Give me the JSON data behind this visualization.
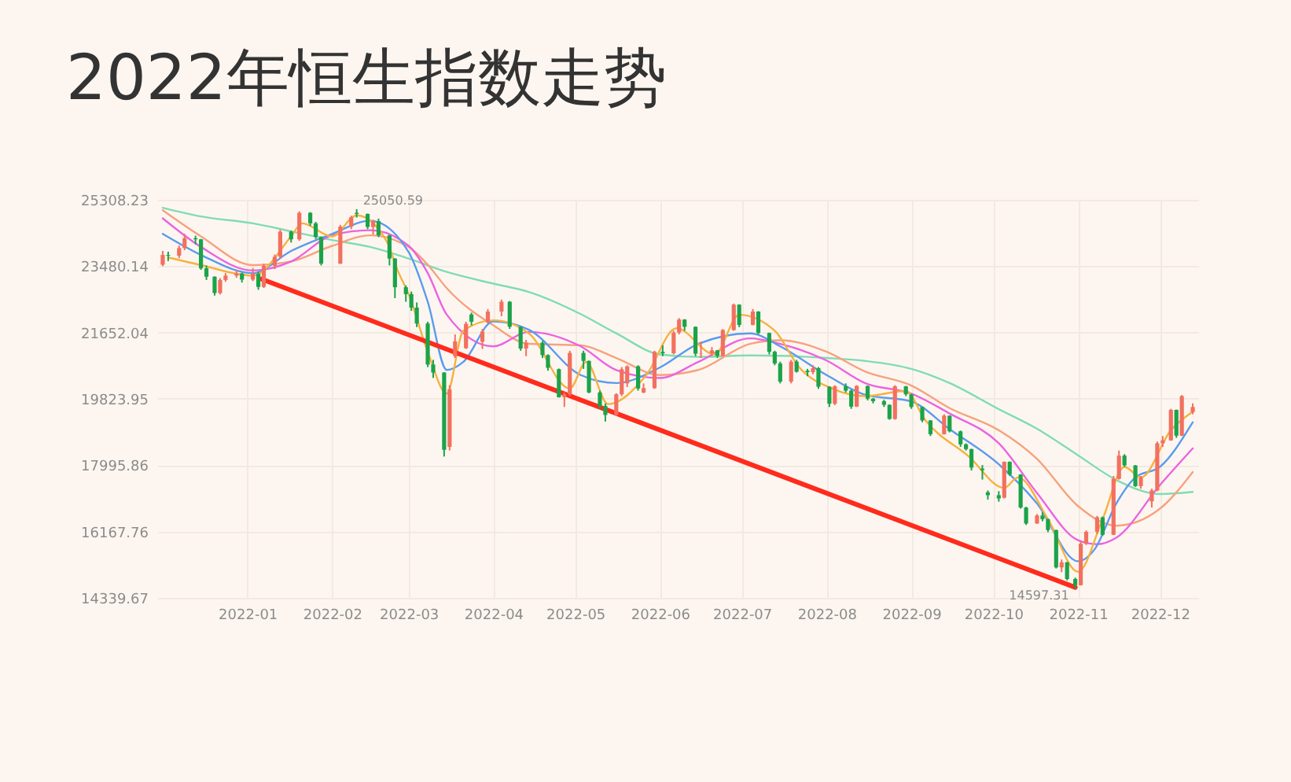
{
  "chart_data": {
    "type": "candlestick",
    "title": "2022年恒生指数走势",
    "x": [
      "2021-12-01",
      "2021-12-03",
      "2021-12-07",
      "2021-12-09",
      "2021-12-13",
      "2021-12-15",
      "2021-12-17",
      "2021-12-20",
      "2021-12-22",
      "2021-12-24",
      "2021-12-28",
      "2021-12-30",
      "2022-01-03",
      "2022-01-05",
      "2022-01-07",
      "2022-01-11",
      "2022-01-13",
      "2022-01-17",
      "2022-01-20",
      "2022-01-24",
      "2022-01-26",
      "2022-01-28",
      "2022-02-04",
      "2022-02-08",
      "2022-02-10",
      "2022-02-14",
      "2022-02-16",
      "2022-02-18",
      "2022-02-22",
      "2022-02-24",
      "2022-02-28",
      "2022-03-02",
      "2022-03-04",
      "2022-03-08",
      "2022-03-10",
      "2022-03-14",
      "2022-03-16",
      "2022-03-18",
      "2022-03-22",
      "2022-03-24",
      "2022-03-28",
      "2022-03-30",
      "2022-04-04",
      "2022-04-07",
      "2022-04-11",
      "2022-04-13",
      "2022-04-19",
      "2022-04-21",
      "2022-04-25",
      "2022-04-27",
      "2022-04-29",
      "2022-05-04",
      "2022-05-06",
      "2022-05-10",
      "2022-05-12",
      "2022-05-16",
      "2022-05-18",
      "2022-05-20",
      "2022-05-24",
      "2022-05-26",
      "2022-05-30",
      "2022-06-02",
      "2022-06-06",
      "2022-06-08",
      "2022-06-10",
      "2022-06-14",
      "2022-06-16",
      "2022-06-20",
      "2022-06-22",
      "2022-06-24",
      "2022-06-28",
      "2022-06-30",
      "2022-07-05",
      "2022-07-07",
      "2022-07-11",
      "2022-07-13",
      "2022-07-15",
      "2022-07-19",
      "2022-07-21",
      "2022-07-25",
      "2022-07-27",
      "2022-07-29",
      "2022-08-02",
      "2022-08-04",
      "2022-08-08",
      "2022-08-10",
      "2022-08-12",
      "2022-08-16",
      "2022-08-18",
      "2022-08-22",
      "2022-08-24",
      "2022-08-26",
      "2022-08-30",
      "2022-09-01",
      "2022-09-05",
      "2022-09-08",
      "2022-09-13",
      "2022-09-15",
      "2022-09-19",
      "2022-09-21",
      "2022-09-23",
      "2022-09-27",
      "2022-09-29",
      "2022-10-03",
      "2022-10-05",
      "2022-10-07",
      "2022-10-11",
      "2022-10-13",
      "2022-10-17",
      "2022-10-19",
      "2022-10-21",
      "2022-10-24",
      "2022-10-26",
      "2022-10-28",
      "2022-10-31",
      "2022-11-02",
      "2022-11-04",
      "2022-11-08",
      "2022-11-10",
      "2022-11-14",
      "2022-11-16",
      "2022-11-18",
      "2022-11-22",
      "2022-11-24",
      "2022-11-28",
      "2022-11-30",
      "2022-12-02",
      "2022-12-05",
      "2022-12-07",
      "2022-12-09",
      "2022-12-13"
    ],
    "ohlc": [
      [
        23520,
        23900,
        23480,
        23790
      ],
      [
        23790,
        23880,
        23620,
        23770
      ],
      [
        23770,
        24050,
        23700,
        23980
      ],
      [
        23980,
        24370,
        23920,
        24250
      ],
      [
        24250,
        24320,
        24080,
        24220
      ],
      [
        24220,
        24230,
        23380,
        23420
      ],
      [
        23420,
        23500,
        23100,
        23190
      ],
      [
        23190,
        23200,
        22670,
        22740
      ],
      [
        22740,
        23150,
        22700,
        23100
      ],
      [
        23100,
        23290,
        23050,
        23220
      ],
      [
        23220,
        23380,
        23160,
        23280
      ],
      [
        23280,
        23300,
        23030,
        23110
      ],
      [
        23110,
        23430,
        23070,
        23270
      ],
      [
        23270,
        23330,
        22830,
        22910
      ],
      [
        22910,
        23550,
        22880,
        23490
      ],
      [
        23490,
        23800,
        23400,
        23740
      ],
      [
        23740,
        24480,
        23700,
        24430
      ],
      [
        24430,
        24460,
        24130,
        24220
      ],
      [
        24220,
        24990,
        24180,
        24950
      ],
      [
        24950,
        24970,
        24590,
        24660
      ],
      [
        24660,
        24700,
        24230,
        24290
      ],
      [
        24290,
        24300,
        23500,
        23550
      ],
      [
        23550,
        24620,
        23540,
        24570
      ],
      [
        24570,
        24870,
        24500,
        24830
      ],
      [
        24950,
        25050.59,
        24820,
        24920
      ],
      [
        24920,
        24930,
        24500,
        24560
      ],
      [
        24560,
        24760,
        24350,
        24720
      ],
      [
        24720,
        24790,
        24280,
        24330
      ],
      [
        24330,
        24340,
        23500,
        23690
      ],
      [
        23690,
        23700,
        22600,
        22900
      ],
      [
        22900,
        22950,
        22500,
        22710
      ],
      [
        22710,
        22780,
        22250,
        22340
      ],
      [
        22340,
        22480,
        21800,
        21900
      ],
      [
        21900,
        21950,
        20700,
        20770
      ],
      [
        20770,
        20900,
        20400,
        20550
      ],
      [
        20550,
        20560,
        18235,
        18420
      ],
      [
        18500,
        20200,
        18400,
        20090
      ],
      [
        21000,
        21600,
        20950,
        21410
      ],
      [
        21220,
        21950,
        21200,
        21890
      ],
      [
        22150,
        22200,
        21850,
        21950
      ],
      [
        21400,
        21750,
        21200,
        21680
      ],
      [
        21930,
        22300,
        21900,
        22230
      ],
      [
        22230,
        22560,
        22100,
        22500
      ],
      [
        22500,
        22520,
        21750,
        21810
      ],
      [
        21810,
        21820,
        21150,
        21210
      ],
      [
        21210,
        21450,
        21000,
        21370
      ],
      [
        21370,
        21420,
        20950,
        21030
      ],
      [
        21030,
        21050,
        20600,
        20680
      ],
      [
        20640,
        20660,
        19860,
        19870
      ],
      [
        19870,
        20000,
        19600,
        19950
      ],
      [
        19950,
        21150,
        19900,
        21090
      ],
      [
        21090,
        21150,
        20650,
        20870
      ],
      [
        20870,
        20880,
        19980,
        20000
      ],
      [
        20000,
        20050,
        19550,
        19630
      ],
      [
        19630,
        19700,
        19200,
        19380
      ],
      [
        19380,
        19980,
        19350,
        19950
      ],
      [
        19950,
        20700,
        19900,
        20640
      ],
      [
        20250,
        20750,
        20150,
        20720
      ],
      [
        20720,
        20750,
        20050,
        20110
      ],
      [
        20000,
        20250,
        19980,
        20120
      ],
      [
        20120,
        21150,
        20100,
        21120
      ],
      [
        21120,
        21300,
        21000,
        21080
      ],
      [
        21080,
        21700,
        21050,
        21650
      ],
      [
        21650,
        22050,
        21600,
        22010
      ],
      [
        22010,
        22020,
        21700,
        21810
      ],
      [
        21810,
        21820,
        21000,
        21070
      ],
      [
        21070,
        21400,
        20950,
        21080
      ],
      [
        21080,
        21250,
        21000,
        21160
      ],
      [
        21160,
        21170,
        20950,
        21010
      ],
      [
        21010,
        21750,
        21000,
        21720
      ],
      [
        21720,
        22450,
        21700,
        22420
      ],
      [
        22420,
        22430,
        21800,
        21860
      ],
      [
        21860,
        22300,
        21850,
        22230
      ],
      [
        22230,
        22240,
        21600,
        21640
      ],
      [
        21640,
        21650,
        21050,
        21120
      ],
      [
        21120,
        21150,
        20750,
        20800
      ],
      [
        20800,
        20850,
        20250,
        20300
      ],
      [
        20300,
        20900,
        20250,
        20850
      ],
      [
        20850,
        20900,
        20550,
        20570
      ],
      [
        20600,
        20650,
        20450,
        20560
      ],
      [
        20560,
        20750,
        20500,
        20670
      ],
      [
        20670,
        20700,
        20100,
        20160
      ],
      [
        20160,
        20170,
        19600,
        19690
      ],
      [
        19690,
        20200,
        19650,
        20170
      ],
      [
        20170,
        20250,
        20000,
        20050
      ],
      [
        20050,
        20080,
        19550,
        19610
      ],
      [
        19610,
        20200,
        19600,
        20180
      ],
      [
        20180,
        20190,
        19780,
        19830
      ],
      [
        19830,
        19850,
        19700,
        19760
      ],
      [
        19760,
        19800,
        19600,
        19660
      ],
      [
        19660,
        19670,
        19250,
        19270
      ],
      [
        19270,
        20200,
        19250,
        20170
      ],
      [
        20170,
        20180,
        19900,
        19950
      ],
      [
        19950,
        19960,
        19550,
        19600
      ],
      [
        19600,
        19610,
        19180,
        19230
      ],
      [
        19230,
        19240,
        18800,
        18850
      ],
      [
        18850,
        19400,
        18840,
        19360
      ],
      [
        19360,
        19370,
        18900,
        18930
      ],
      [
        18930,
        18950,
        18500,
        18570
      ],
      [
        18570,
        18600,
        18400,
        18440
      ],
      [
        18440,
        18450,
        17850,
        17930
      ],
      [
        17900,
        18000,
        17600,
        17860
      ],
      [
        17250,
        17300,
        17050,
        17170
      ],
      [
        17170,
        17280,
        16990,
        17080
      ],
      [
        17100,
        18100,
        17080,
        18090
      ],
      [
        18090,
        18100,
        17700,
        17740
      ],
      [
        17740,
        17750,
        16800,
        16830
      ],
      [
        16830,
        16850,
        16350,
        16390
      ],
      [
        16390,
        16650,
        16380,
        16610
      ],
      [
        16610,
        16700,
        16450,
        16510
      ],
      [
        16510,
        16520,
        16150,
        16210
      ],
      [
        16210,
        16220,
        15150,
        15180
      ],
      [
        15180,
        15400,
        15050,
        15320
      ],
      [
        15320,
        15330,
        14820,
        14860
      ],
      [
        14860,
        14900,
        14597.31,
        14690
      ],
      [
        14690,
        15900,
        14680,
        15830
      ],
      [
        15830,
        16200,
        15800,
        16160
      ],
      [
        16160,
        16600,
        16100,
        16560
      ],
      [
        16560,
        16580,
        16050,
        16080
      ],
      [
        16080,
        17700,
        16070,
        17620
      ],
      [
        17620,
        18400,
        17600,
        18260
      ],
      [
        18260,
        18300,
        17950,
        17990
      ],
      [
        17990,
        18000,
        17400,
        17420
      ],
      [
        17420,
        17700,
        17350,
        17660
      ],
      [
        17000,
        17350,
        16830,
        17300
      ],
      [
        17300,
        18650,
        17280,
        18600
      ],
      [
        18600,
        18800,
        18500,
        18680
      ],
      [
        18680,
        19550,
        18670,
        19520
      ],
      [
        19520,
        19530,
        18750,
        18810
      ],
      [
        18810,
        19930,
        18800,
        19900
      ],
      [
        19460,
        19700,
        19400,
        19600
      ]
    ],
    "colors": [
      "#f2705f",
      "#1ca34a",
      "#f2705f",
      "#f2705f",
      "#1ca34a",
      "#1ca34a",
      "#1ca34a",
      "#1ca34a",
      "#f2705f",
      "#f2705f",
      "#f2705f",
      "#1ca34a",
      "#f2705f",
      "#1ca34a",
      "#f2705f",
      "#f2705f",
      "#f2705f",
      "#1ca34a",
      "#f2705f",
      "#1ca34a",
      "#1ca34a",
      "#1ca34a",
      "#f2705f",
      "#f2705f",
      "#1ca34a",
      "#1ca34a",
      "#f2705f",
      "#1ca34a",
      "#1ca34a",
      "#1ca34a",
      "#1ca34a",
      "#1ca34a",
      "#1ca34a",
      "#1ca34a",
      "#1ca34a",
      "#1ca34a",
      "#f2705f",
      "#f2705f",
      "#f2705f",
      "#1ca34a",
      "#f2705f",
      "#f2705f",
      "#f2705f",
      "#1ca34a",
      "#1ca34a",
      "#f2705f",
      "#1ca34a",
      "#1ca34a",
      "#1ca34a",
      "#f2705f",
      "#f2705f",
      "#1ca34a",
      "#1ca34a",
      "#1ca34a",
      "#1ca34a",
      "#f2705f",
      "#f2705f",
      "#f2705f",
      "#1ca34a",
      "#f2705f",
      "#f2705f",
      "#1ca34a",
      "#f2705f",
      "#f2705f",
      "#1ca34a",
      "#1ca34a",
      "#f2705f",
      "#f2705f",
      "#1ca34a",
      "#f2705f",
      "#f2705f",
      "#1ca34a",
      "#f2705f",
      "#1ca34a",
      "#1ca34a",
      "#1ca34a",
      "#1ca34a",
      "#f2705f",
      "#1ca34a",
      "#1ca34a",
      "#f2705f",
      "#1ca34a",
      "#1ca34a",
      "#f2705f",
      "#1ca34a",
      "#1ca34a",
      "#f2705f",
      "#1ca34a",
      "#1ca34a",
      "#1ca34a",
      "#1ca34a",
      "#f2705f",
      "#1ca34a",
      "#1ca34a",
      "#1ca34a",
      "#1ca34a",
      "#f2705f",
      "#1ca34a",
      "#1ca34a",
      "#1ca34a",
      "#1ca34a",
      "#1ca34a",
      "#1ca34a",
      "#1ca34a",
      "#f2705f",
      "#1ca34a",
      "#1ca34a",
      "#1ca34a",
      "#f2705f",
      "#1ca34a",
      "#1ca34a",
      "#1ca34a",
      "#f2705f",
      "#1ca34a",
      "#1ca34a",
      "#f2705f",
      "#f2705f",
      "#f2705f",
      "#1ca34a",
      "#f2705f",
      "#f2705f",
      "#1ca34a",
      "#1ca34a",
      "#f2705f",
      "#f2705f",
      "#f2705f",
      "#f2705f",
      "#f2705f",
      "#1ca34a",
      "#f2705f",
      "#f2705f"
    ],
    "series": [
      {
        "type": "line",
        "color": "#80dcb4",
        "x": [
          "2021-12-01",
          "2021-12-15",
          "2022-01-03",
          "2022-01-17",
          "2022-02-01",
          "2022-02-15",
          "2022-03-01",
          "2022-03-15",
          "2022-04-01",
          "2022-04-14",
          "2022-05-03",
          "2022-05-16",
          "2022-06-01",
          "2022-06-15",
          "2022-07-04",
          "2022-07-15",
          "2022-08-01",
          "2022-08-15",
          "2022-09-01",
          "2022-09-15",
          "2022-10-03",
          "2022-10-17",
          "2022-11-01",
          "2022-11-15",
          "2022-12-01",
          "2022-12-13"
        ],
        "values": [
          25090,
          24850,
          24660,
          24440,
          24200,
          24010,
          23690,
          23320,
          23000,
          22770,
          22160,
          21630,
          21050,
          20980,
          21020,
          21010,
          20950,
          20870,
          20650,
          20260,
          19540,
          19000,
          18270,
          17590,
          17200,
          17260
        ]
      },
      {
        "type": "line",
        "color": "#f6a27e",
        "x": [
          "2021-12-01",
          "2021-12-15",
          "2022-01-03",
          "2022-01-17",
          "2022-02-01",
          "2022-02-15",
          "2022-03-01",
          "2022-03-08",
          "2022-03-15",
          "2022-04-01",
          "2022-04-14",
          "2022-05-03",
          "2022-05-16",
          "2022-06-01",
          "2022-06-15",
          "2022-07-04",
          "2022-07-15",
          "2022-08-01",
          "2022-08-15",
          "2022-09-01",
          "2022-09-15",
          "2022-10-03",
          "2022-10-17",
          "2022-11-01",
          "2022-11-15",
          "2022-12-01",
          "2022-12-13"
        ],
        "values": [
          25020,
          24300,
          23510,
          23610,
          24040,
          24330,
          24010,
          23520,
          22870,
          21850,
          21340,
          21300,
          20950,
          20480,
          20620,
          21340,
          21440,
          21120,
          20580,
          20190,
          19570,
          18960,
          18170,
          16870,
          16330,
          16800,
          17810
        ]
      },
      {
        "type": "line",
        "color": "#ec63e0",
        "x": [
          "2021-12-01",
          "2021-12-15",
          "2022-01-03",
          "2022-01-17",
          "2022-02-01",
          "2022-02-15",
          "2022-03-01",
          "2022-03-08",
          "2022-03-15",
          "2022-04-01",
          "2022-04-14",
          "2022-05-03",
          "2022-05-16",
          "2022-06-01",
          "2022-06-15",
          "2022-07-04",
          "2022-07-15",
          "2022-08-01",
          "2022-08-15",
          "2022-09-01",
          "2022-09-15",
          "2022-10-03",
          "2022-10-17",
          "2022-11-01",
          "2022-11-08",
          "2022-11-15",
          "2022-12-01",
          "2022-12-13"
        ],
        "values": [
          24800,
          24010,
          23360,
          23610,
          24330,
          24470,
          24040,
          23290,
          22140,
          21270,
          21670,
          21270,
          20620,
          20400,
          20840,
          21490,
          21340,
          20880,
          20260,
          19970,
          19420,
          18600,
          17230,
          15930,
          15820,
          16000,
          17450,
          18460
        ]
      },
      {
        "type": "line",
        "color": "#5a9bef",
        "x": [
          "2021-12-01",
          "2021-12-15",
          "2022-01-03",
          "2022-01-17",
          "2022-02-01",
          "2022-02-15",
          "2022-03-01",
          "2022-03-08",
          "2022-03-15",
          "2022-03-21",
          "2022-04-01",
          "2022-04-14",
          "2022-05-03",
          "2022-05-16",
          "2022-06-01",
          "2022-06-15",
          "2022-07-04",
          "2022-07-15",
          "2022-08-01",
          "2022-08-15",
          "2022-09-01",
          "2022-09-15",
          "2022-10-03",
          "2022-10-17",
          "2022-11-01",
          "2022-11-07",
          "2022-11-15",
          "2022-11-22",
          "2022-12-01",
          "2022-12-13"
        ],
        "values": [
          24370,
          23790,
          23290,
          23900,
          24370,
          24730,
          23870,
          22500,
          20620,
          20840,
          21960,
          21730,
          20480,
          20260,
          20690,
          21340,
          21630,
          21270,
          20480,
          19940,
          19750,
          18990,
          18020,
          16940,
          15350,
          15670,
          16940,
          17660,
          17950,
          19180
        ]
      },
      {
        "type": "line",
        "color": "#f7b13f",
        "x": [
          "2021-12-03",
          "2021-12-15",
          "2022-01-03",
          "2022-01-17",
          "2022-01-21",
          "2022-02-01",
          "2022-02-10",
          "2022-02-21",
          "2022-02-25",
          "2022-03-01",
          "2022-03-08",
          "2022-03-15",
          "2022-03-21",
          "2022-04-01",
          "2022-04-14",
          "2022-04-29",
          "2022-05-05",
          "2022-05-13",
          "2022-05-27",
          "2022-06-07",
          "2022-06-21",
          "2022-06-30",
          "2022-07-13",
          "2022-07-22",
          "2022-08-03",
          "2022-08-15",
          "2022-08-30",
          "2022-09-06",
          "2022-09-22",
          "2022-10-05",
          "2022-10-10",
          "2022-10-21",
          "2022-11-01",
          "2022-11-10",
          "2022-11-18",
          "2022-11-24",
          "2022-12-05",
          "2022-12-13"
        ],
        "values": [
          23720,
          23510,
          23220,
          24300,
          24660,
          24300,
          24880,
          24160,
          23360,
          22710,
          21120,
          19970,
          21700,
          21990,
          21630,
          20110,
          20840,
          19680,
          20480,
          21770,
          21050,
          22140,
          21700,
          20690,
          20110,
          19900,
          20040,
          19250,
          18240,
          17370,
          17660,
          16510,
          15060,
          16510,
          17950,
          17660,
          18960,
          19470
        ]
      },
      {
        "type": "line",
        "color": "#ff2b1c",
        "x": [
          "2022-01-06",
          "2022-10-31"
        ],
        "values": [
          23130,
          14630
        ]
      }
    ],
    "annotations": [
      {
        "text": "25050.59",
        "x": "2022-02-10",
        "y": 25050.59
      },
      {
        "text": "14597.31",
        "x": "2022-10-31",
        "y": 14597.31
      }
    ],
    "xlim": [
      "2021-11-29",
      "2022-12-15"
    ],
    "xticks": [
      "2022-01",
      "2022-02",
      "2022-03",
      "2022-04",
      "2022-05",
      "2022-06",
      "2022-07",
      "2022-08",
      "2022-09",
      "2022-10",
      "2022-11",
      "2022-12"
    ],
    "ylim": [
      14339.67,
      25308.23
    ],
    "yticks": [
      14339.67,
      16167.76,
      17995.86,
      19823.95,
      21652.04,
      23480.14,
      25308.23
    ],
    "grid": true
  }
}
